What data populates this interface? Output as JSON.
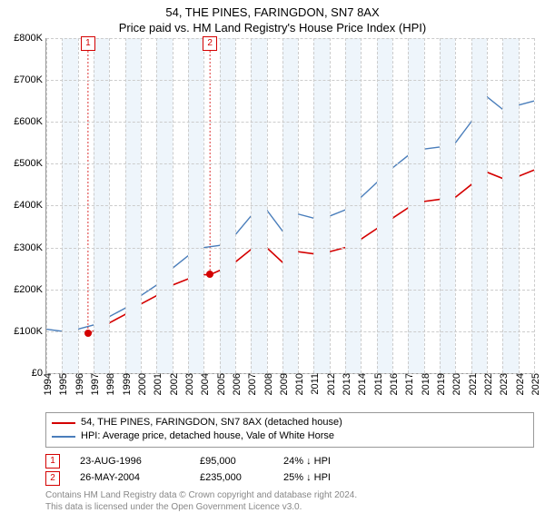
{
  "title_line1": "54, THE PINES, FARINGDON, SN7 8AX",
  "title_line2": "Price paid vs. HM Land Registry's House Price Index (HPI)",
  "chart": {
    "type": "line",
    "background_color": "#ffffff",
    "band_color": "#eef5fb",
    "grid_color": "#cccccc",
    "axis_color": "#999999",
    "x_min": 1994,
    "x_max": 2025,
    "x_step": 1,
    "y_min": 0,
    "y_max": 800,
    "y_step": 100,
    "y_tick_labels": [
      "£0",
      "£100K",
      "£200K",
      "£300K",
      "£400K",
      "£500K",
      "£600K",
      "£700K",
      "£800K"
    ],
    "x_tick_labels": [
      "1994",
      "1995",
      "1996",
      "1997",
      "1998",
      "1999",
      "2000",
      "2001",
      "2002",
      "2003",
      "2004",
      "2005",
      "2006",
      "2007",
      "2008",
      "2009",
      "2010",
      "2011",
      "2012",
      "2013",
      "2014",
      "2015",
      "2016",
      "2017",
      "2018",
      "2019",
      "2020",
      "2021",
      "2022",
      "2023",
      "2024",
      "2025"
    ],
    "series": [
      {
        "name": "price_paid",
        "label": "54, THE PINES, FARINGDON, SN7 8AX (detached house)",
        "color": "#d40000",
        "line_width": 1.6,
        "points": [
          [
            1996.65,
            95
          ],
          [
            1997,
            100
          ],
          [
            1998,
            120
          ],
          [
            1999,
            140
          ],
          [
            2000,
            165
          ],
          [
            2001,
            185
          ],
          [
            2002,
            210
          ],
          [
            2003,
            225
          ],
          [
            2004,
            235
          ],
          [
            2004.4,
            235
          ],
          [
            2005,
            245
          ],
          [
            2006,
            265
          ],
          [
            2007,
            295
          ],
          [
            2008,
            300
          ],
          [
            2009,
            265
          ],
          [
            2010,
            290
          ],
          [
            2011,
            285
          ],
          [
            2012,
            290
          ],
          [
            2013,
            300
          ],
          [
            2014,
            320
          ],
          [
            2015,
            345
          ],
          [
            2016,
            370
          ],
          [
            2017,
            395
          ],
          [
            2018,
            410
          ],
          [
            2019,
            415
          ],
          [
            2020,
            420
          ],
          [
            2021,
            450
          ],
          [
            2022,
            480
          ],
          [
            2023,
            465
          ],
          [
            2024,
            470
          ],
          [
            2025,
            485
          ]
        ]
      },
      {
        "name": "hpi",
        "label": "HPI: Average price, detached house, Vale of White Horse",
        "color": "#4a7ebb",
        "line_width": 1.4,
        "points": [
          [
            1994,
            105
          ],
          [
            1995,
            100
          ],
          [
            1996,
            105
          ],
          [
            1997,
            115
          ],
          [
            1998,
            135
          ],
          [
            1999,
            155
          ],
          [
            2000,
            185
          ],
          [
            2001,
            210
          ],
          [
            2002,
            250
          ],
          [
            2003,
            280
          ],
          [
            2004,
            300
          ],
          [
            2005,
            305
          ],
          [
            2006,
            330
          ],
          [
            2007,
            375
          ],
          [
            2008,
            390
          ],
          [
            2009,
            340
          ],
          [
            2010,
            380
          ],
          [
            2011,
            370
          ],
          [
            2012,
            375
          ],
          [
            2013,
            390
          ],
          [
            2014,
            420
          ],
          [
            2015,
            455
          ],
          [
            2016,
            490
          ],
          [
            2017,
            520
          ],
          [
            2018,
            535
          ],
          [
            2019,
            540
          ],
          [
            2020,
            550
          ],
          [
            2021,
            600
          ],
          [
            2022,
            660
          ],
          [
            2023,
            630
          ],
          [
            2024,
            640
          ],
          [
            2025,
            650
          ]
        ]
      }
    ],
    "sale_markers": [
      {
        "num": "1",
        "x": 1996.65,
        "y": 95,
        "color": "#d40000"
      },
      {
        "num": "2",
        "x": 2004.4,
        "y": 235,
        "color": "#d40000"
      }
    ],
    "dot_radius": 4
  },
  "legend": {
    "border_color": "#999999",
    "items": [
      {
        "color": "#d40000",
        "label": "54, THE PINES, FARINGDON, SN7 8AX (detached house)"
      },
      {
        "color": "#4a7ebb",
        "label": "HPI: Average price, detached house, Vale of White Horse"
      }
    ]
  },
  "sales": [
    {
      "num": "1",
      "color": "#d40000",
      "date": "23-AUG-1996",
      "price": "£95,000",
      "delta": "24% ↓ HPI"
    },
    {
      "num": "2",
      "color": "#d40000",
      "date": "26-MAY-2004",
      "price": "£235,000",
      "delta": "25% ↓ HPI"
    }
  ],
  "footnote_line1": "Contains HM Land Registry data © Crown copyright and database right 2024.",
  "footnote_line2": "This data is licensed under the Open Government Licence v3.0."
}
